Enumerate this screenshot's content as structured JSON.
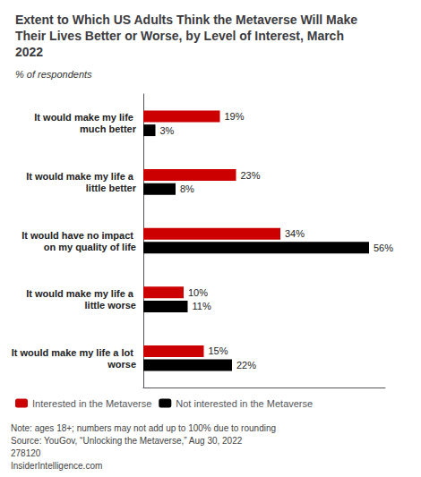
{
  "chart_data": {
    "type": "bar",
    "orientation": "horizontal",
    "title": "Extent to Which US Adults Think the Metaverse Will Make Their Lives Better or Worse, by Level of Interest, March 2022",
    "subtitle": "% of respondents",
    "categories": [
      "It would make my life much better",
      "It would make my life a little better",
      "It would have no impact on my quality of life",
      "It would make my life a little worse",
      "It would make my life a lot worse"
    ],
    "series": [
      {
        "name": "Interested in the Metaverse",
        "color": "#cc0000",
        "values": [
          19,
          23,
          34,
          10,
          15
        ],
        "value_labels": [
          "19%",
          "23%",
          "34%",
          "10%",
          "15%"
        ]
      },
      {
        "name": "Not interested in the Metaverse",
        "color": "#000000",
        "values": [
          3,
          8,
          56,
          11,
          22
        ],
        "value_labels": [
          "3%",
          "8%",
          "56%",
          "11%",
          "22%"
        ]
      }
    ],
    "xlim": [
      0,
      60
    ],
    "tick_labels": false,
    "grid": false,
    "data_labels": true,
    "legend": "lower left",
    "annotations": [
      "Note: ages 18+; numbers may not add up to 100% due to rounding",
      "Source: YouGov, “Unlocking the Metaverse,” Aug 30, 2022",
      "278120",
      "InsiderIntelligence.com"
    ]
  }
}
